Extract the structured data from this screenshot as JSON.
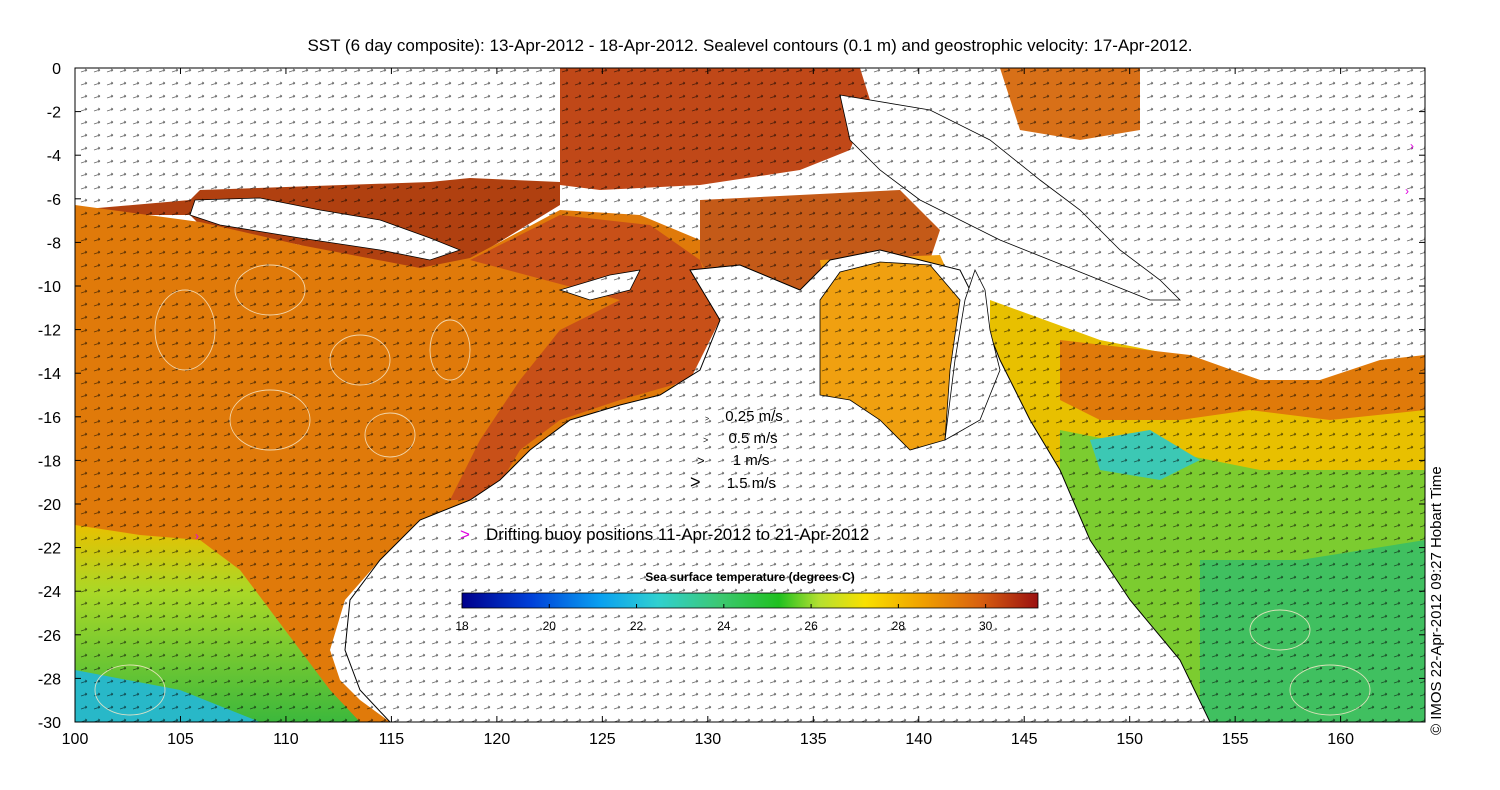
{
  "title": "SST (6 day composite): 13-Apr-2012 - 18-Apr-2012. Sealevel contours (0.1 m) and geostrophic velocity: 17-Apr-2012.",
  "copyright": "© IMOS 22-Apr-2012 09:27 Hobart Time",
  "map": {
    "x_ticks": [
      100,
      105,
      110,
      115,
      120,
      125,
      130,
      135,
      140,
      145,
      150,
      155,
      160
    ],
    "y_ticks": [
      0,
      -2,
      -4,
      -6,
      -8,
      -10,
      -12,
      -14,
      -16,
      -18,
      -20,
      -22,
      -24,
      -26,
      -28,
      -30
    ],
    "lon_range": [
      100,
      164
    ],
    "lat_range": [
      -30,
      0
    ]
  },
  "velocity_legend": [
    {
      "label": "0.25 m/s"
    },
    {
      "label": "0.5 m/s"
    },
    {
      "label": "1 m/s"
    },
    {
      "label": "1.5 m/s"
    }
  ],
  "buoy_legend": {
    "marker": ">",
    "label": "Drifting buoy positions 11-Apr-2012 to 21-Apr-2012"
  },
  "colorbar": {
    "title": "Sea surface temperature (degrees C)",
    "ticks": [
      "18",
      "20",
      "22",
      "24",
      "26",
      "28",
      "30"
    ],
    "range": [
      18,
      31.2
    ]
  },
  "colors": {
    "land": "#ffffff",
    "orange_sst": "#e07a0a",
    "deep_orange": "#c8501a",
    "green_sst": "#5fc832",
    "cyan_sst": "#3cc8b4",
    "buoy": "#e000e0"
  }
}
